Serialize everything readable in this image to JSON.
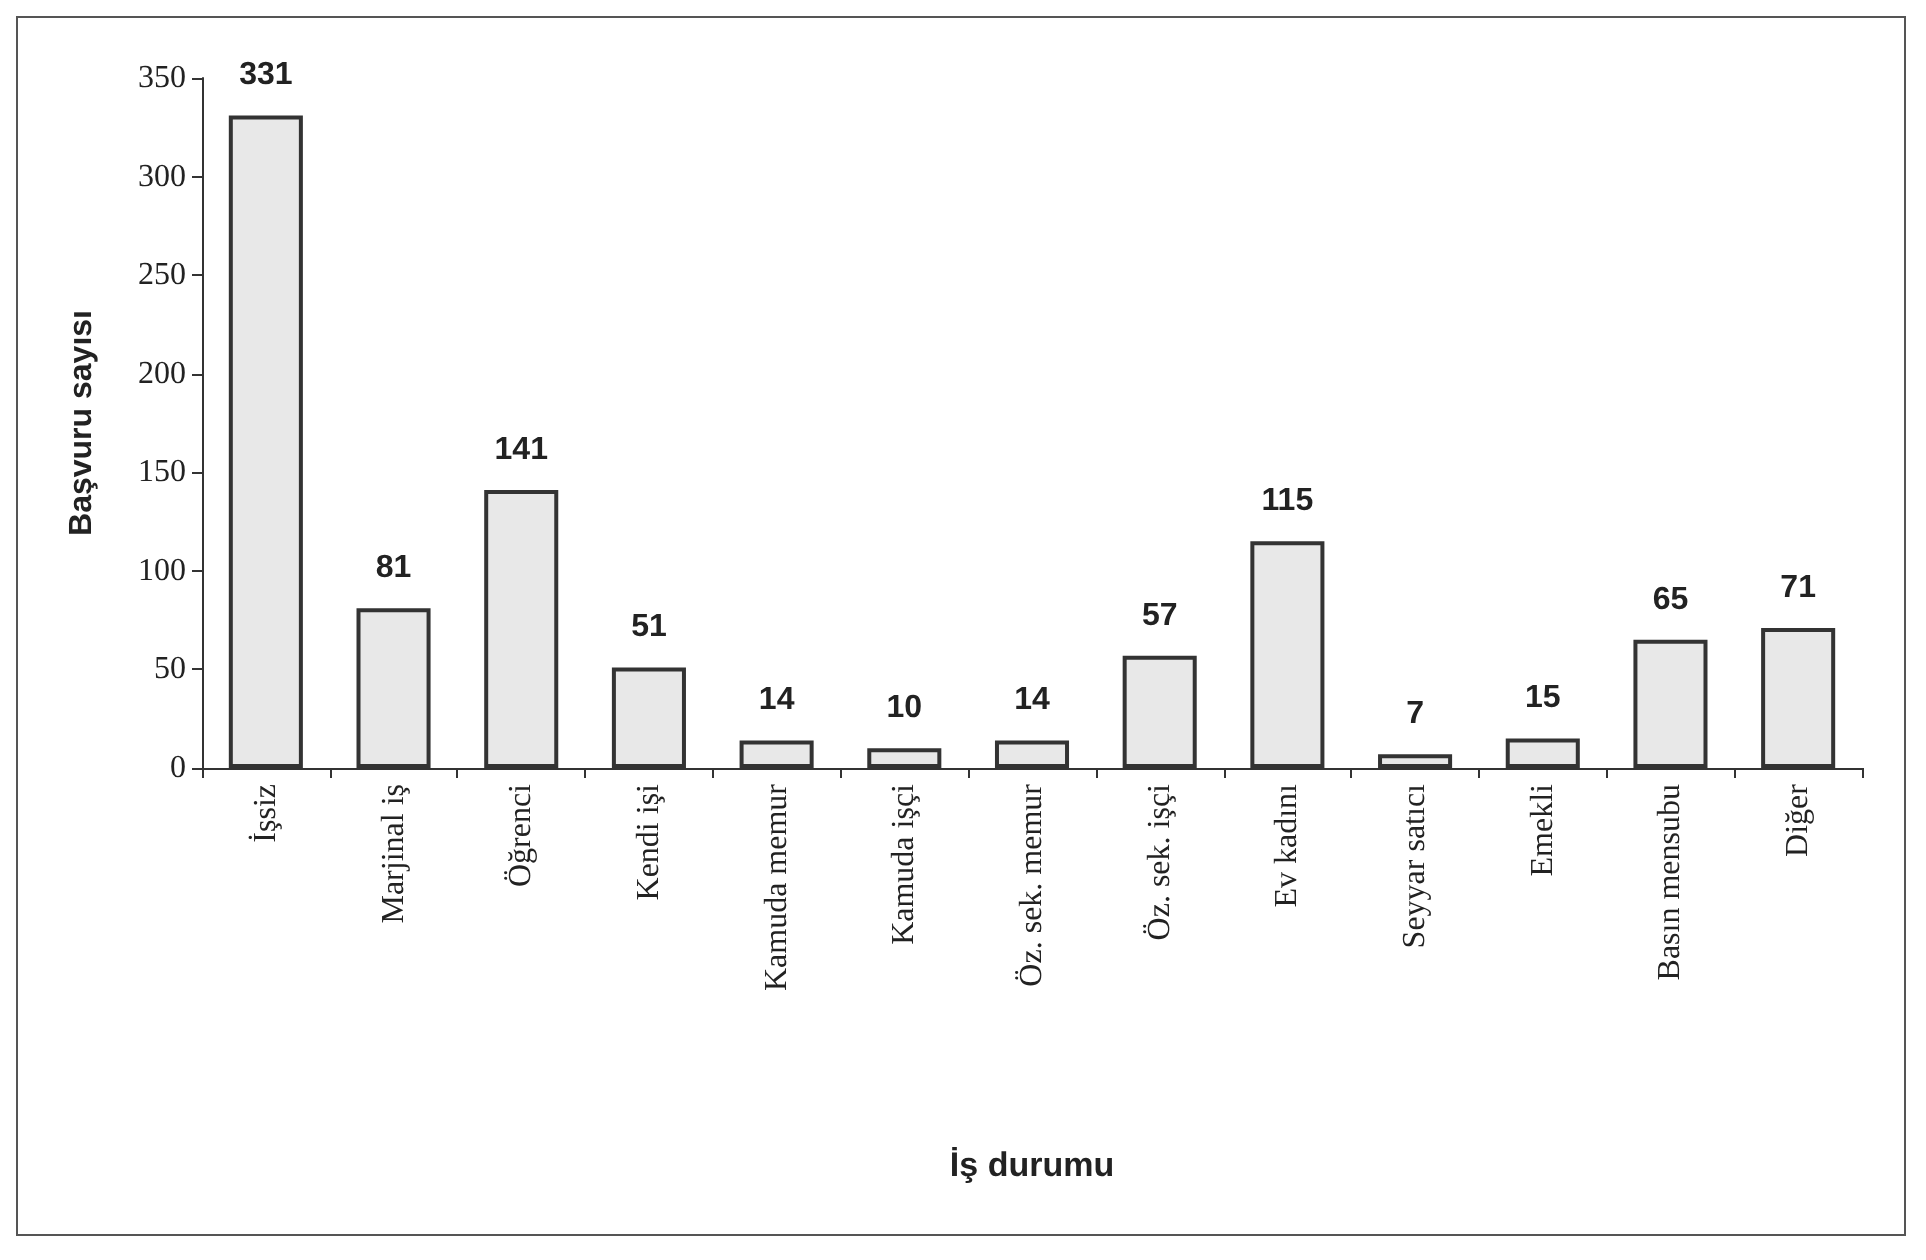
{
  "chart_data": {
    "type": "bar",
    "xlabel": "İş durumu",
    "ylabel": "Başvuru sayısı",
    "categories": [
      "İşsiz",
      "Marjinal iş",
      "Öğrenci",
      "Kendi işi",
      "Kamuda memur",
      "Kamuda işçi",
      "Öz. sek. memur",
      "Öz. sek. işçi",
      "Ev kadını",
      "Seyyar satıcı",
      "Emekli",
      "Basın mensubu",
      "Diğer"
    ],
    "values": [
      331,
      81,
      141,
      51,
      14,
      10,
      14,
      57,
      115,
      7,
      15,
      65,
      71
    ],
    "color": "#e8e8e8",
    "ylim": [
      0,
      350
    ],
    "yticks": [
      0,
      50,
      100,
      150,
      200,
      250,
      300,
      350
    ],
    "grid": false,
    "data_labels": true
  }
}
